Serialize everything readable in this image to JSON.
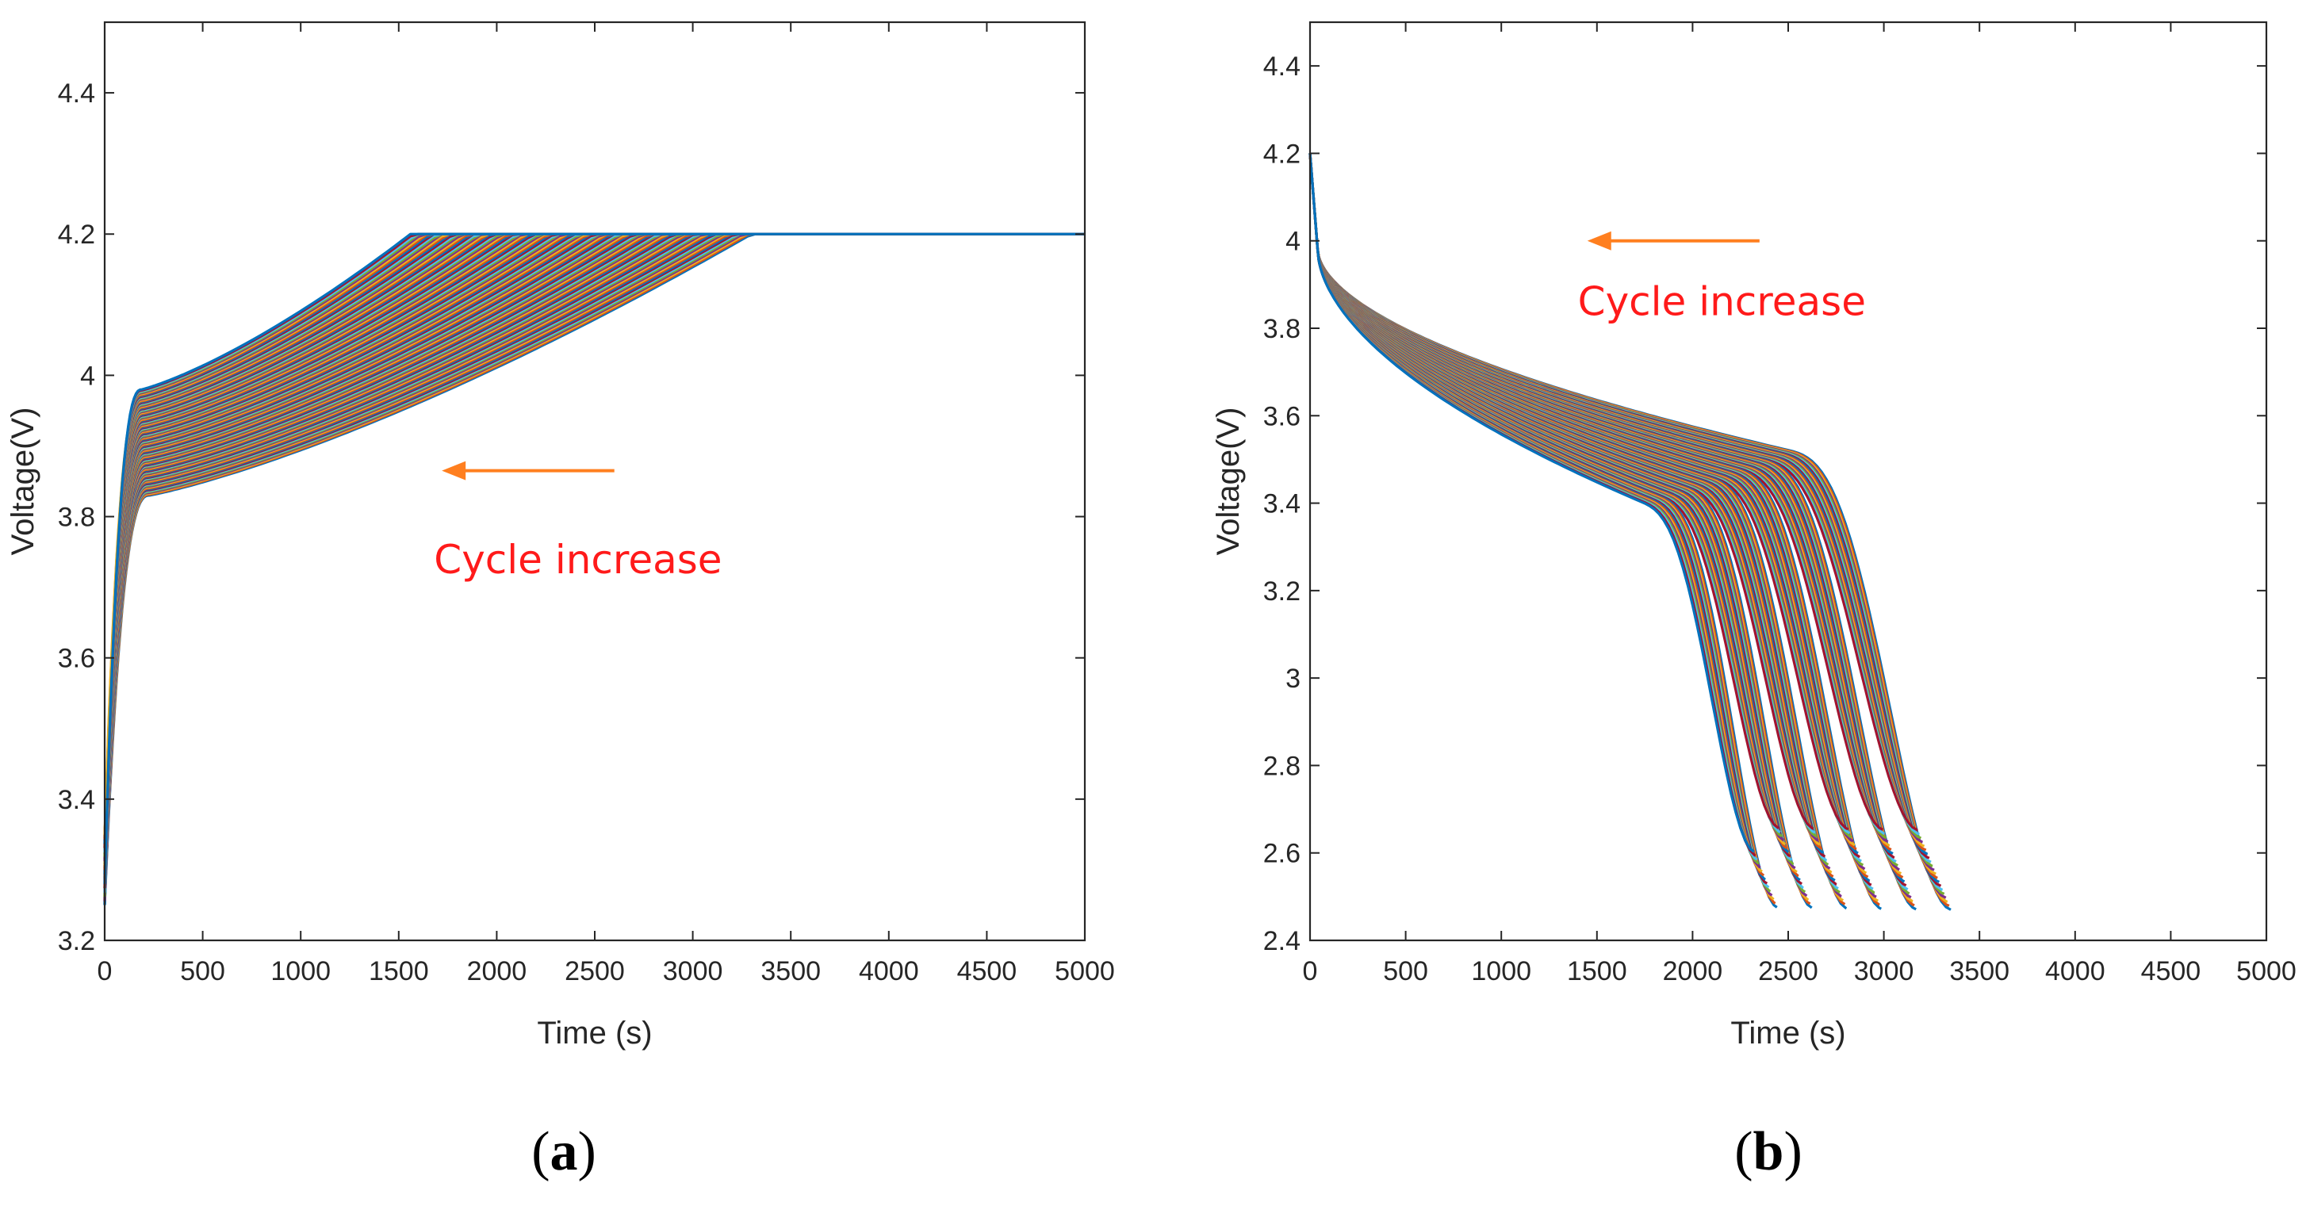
{
  "figure": {
    "palette": [
      "#0072BD",
      "#D95319",
      "#EDB120",
      "#7E2F8E",
      "#77AC30",
      "#4DBEEE",
      "#A2142F"
    ],
    "arrow_color": "#ff7f1f",
    "annotation_color": "#ff1a1a"
  },
  "chart_data": [
    {
      "id": "a",
      "type": "line",
      "panel_label": "a",
      "xlabel": "Time (s)",
      "ylabel": "Voltage(V)",
      "xlim": [
        0,
        5000
      ],
      "ylim": [
        3.2,
        4.5
      ],
      "xticks": [
        0,
        500,
        1000,
        1500,
        2000,
        2500,
        3000,
        3500,
        4000,
        4500,
        5000
      ],
      "yticks": [
        3.2,
        3.4,
        3.6,
        3.8,
        4,
        4.2,
        4.4
      ],
      "xtick_labels": [
        "0",
        "500",
        "1000",
        "1500",
        "2000",
        "2500",
        "3000",
        "3500",
        "4000",
        "4500",
        "5000"
      ],
      "ytick_labels": [
        "3.2",
        "3.4",
        "3.6",
        "3.8",
        "4",
        "4.2",
        "4.4"
      ],
      "annotation": {
        "text": "Cycle increase",
        "arrow_from": [
          2600,
          3.865
        ],
        "arrow_to": [
          1720,
          3.865
        ],
        "text_at": [
          1680,
          3.72
        ]
      },
      "series_description": "Charging voltage curves for ~120 cycles; CC phase reaches 4.2 V earlier as cycle number increases, then CV plateau at 4.2 V to 5000 s",
      "n_series": 120,
      "series_range": {
        "start_voltage": [
          3.25,
          3.35
        ],
        "knee_voltage_first": 3.83,
        "knee_voltage_last": 3.98,
        "time_reach_4_2_first": 3300,
        "time_reach_4_2_last": 1560,
        "plateau_voltage": 4.2,
        "x_end": 5000
      }
    },
    {
      "id": "b",
      "type": "line",
      "panel_label": "b",
      "xlabel": "Time (s)",
      "ylabel": "Voltage(V)",
      "xlim": [
        0,
        5000
      ],
      "ylim": [
        2.4,
        4.5
      ],
      "xticks": [
        0,
        500,
        1000,
        1500,
        2000,
        2500,
        3000,
        3500,
        4000,
        4500,
        5000
      ],
      "yticks": [
        2.4,
        2.6,
        2.8,
        3,
        3.2,
        3.4,
        3.6,
        3.8,
        4,
        4.2,
        4.4
      ],
      "xtick_labels": [
        "0",
        "500",
        "1000",
        "1500",
        "2000",
        "2500",
        "3000",
        "3500",
        "4000",
        "4500",
        "5000"
      ],
      "ytick_labels": [
        "2.4",
        "2.6",
        "2.8",
        "3",
        "3.2",
        "3.4",
        "3.6",
        "3.8",
        "4",
        "4.2",
        "4.4"
      ],
      "annotation": {
        "text": "Cycle increase",
        "arrow_from": [
          2350,
          4.0
        ],
        "arrow_to": [
          1450,
          4.0
        ],
        "text_at": [
          1400,
          3.83
        ]
      },
      "series_description": "Discharge voltage curves for ~120 cycles; cutoff time shortens from ~3350 s to ~2320 s as cycle number increases",
      "n_series": 120,
      "series_range": {
        "start_voltage": 4.2,
        "end_time_first": 3350,
        "end_time_last": 2320,
        "end_voltage": [
          2.47,
          2.66
        ],
        "plateau_voltage_first": 3.44,
        "plateau_voltage_last": 3.3
      }
    }
  ]
}
